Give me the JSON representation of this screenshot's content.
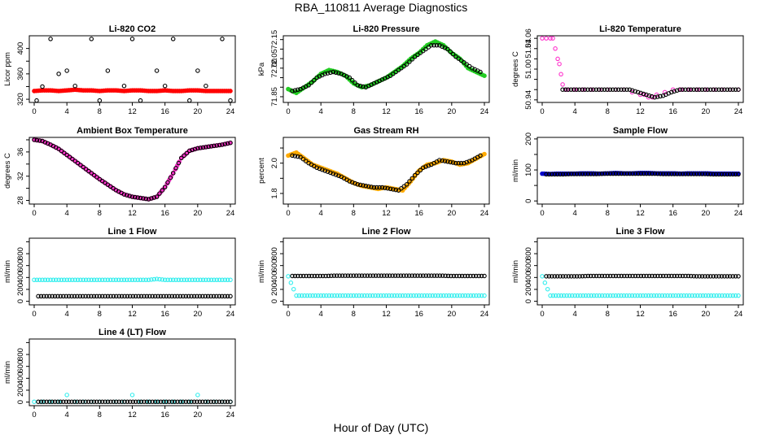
{
  "figure": {
    "title": "RBA_110811  Average Diagnostics",
    "xlabel": "Hour of Day (UTC)"
  },
  "chart_data": [
    {
      "type": "scatter",
      "title": "Li-820 CO2",
      "ylabel": "Licor ppm",
      "xlim": [
        0,
        24
      ],
      "xticks": [
        0,
        4,
        8,
        12,
        16,
        20,
        24
      ],
      "ylim": [
        315,
        420
      ],
      "yticks": [
        320,
        340,
        360,
        380,
        400
      ],
      "ytick_labels": [
        "320",
        "",
        "360",
        "",
        "400"
      ],
      "series": [
        {
          "color": "#ff0000",
          "marker": "dot",
          "x_range": [
            0,
            24
          ],
          "values": [
            333,
            334,
            334,
            333,
            334,
            335,
            334,
            334,
            333,
            334,
            334,
            333,
            334,
            334,
            333,
            333,
            334,
            333,
            333,
            334,
            334,
            333,
            333,
            333,
            333
          ]
        },
        {
          "color": "#000000",
          "marker": "circle",
          "x": [
            0.3,
            1,
            2,
            3,
            4,
            5,
            7,
            8,
            9,
            11,
            12,
            13,
            15,
            16,
            17,
            19,
            20,
            21,
            23,
            24
          ],
          "values": [
            318,
            340,
            415,
            360,
            365,
            341,
            415,
            318,
            365,
            341,
            415,
            318,
            365,
            341,
            415,
            318,
            365,
            341,
            415,
            318
          ]
        }
      ]
    },
    {
      "type": "scatter",
      "title": "Li-820 Pressure",
      "ylabel": "kPa",
      "xlim": [
        0,
        24
      ],
      "xticks": [
        0,
        4,
        8,
        12,
        16,
        20,
        24
      ],
      "ylim": [
        71.82,
        72.17
      ],
      "yticks": [
        71.85,
        71.9,
        71.95,
        72.0,
        72.05,
        72.1,
        72.15
      ],
      "ytick_labels": [
        "71.85",
        "",
        "",
        "72.00",
        "72.05",
        "",
        "72.15"
      ],
      "series": [
        {
          "color": "#22cc22",
          "marker": "dot",
          "x_range": [
            0,
            24
          ],
          "values": [
            71.89,
            71.87,
            71.9,
            71.93,
            71.97,
            71.99,
            71.98,
            71.96,
            71.92,
            71.9,
            71.91,
            71.93,
            71.95,
            71.98,
            72.01,
            72.05,
            72.08,
            72.12,
            72.14,
            72.12,
            72.08,
            72.05,
            72.0,
            71.98,
            71.96
          ]
        },
        {
          "color": "#000000",
          "marker": "circle",
          "x_range": [
            0.5,
            23.5
          ],
          "values": [
            71.88,
            71.89,
            71.91,
            71.95,
            71.97,
            71.98,
            71.97,
            71.95,
            71.91,
            71.9,
            71.92,
            71.94,
            71.96,
            71.99,
            72.02,
            72.06,
            72.09,
            72.12,
            72.12,
            72.1,
            72.06,
            72.03,
            72.0,
            71.98
          ]
        }
      ]
    },
    {
      "type": "scatter",
      "title": "Li-820 Temperature",
      "ylabel": "degrees C",
      "xlim": [
        0,
        24
      ],
      "xticks": [
        0,
        4,
        8,
        12,
        16,
        20,
        24
      ],
      "ylim": [
        50.935,
        51.065
      ],
      "yticks": [
        50.94,
        50.96,
        50.98,
        51.0,
        51.02,
        51.04,
        51.06
      ],
      "ytick_labels": [
        "50.94",
        "",
        "",
        "51.00",
        "",
        "51.04",
        "51.06"
      ],
      "series": [
        {
          "color": "#ff33cc",
          "marker": "circle",
          "x": [
            0,
            0.5,
            1,
            1.3,
            1.6,
            1.9,
            2.1,
            2.3,
            2.5,
            3,
            4,
            5,
            6,
            7,
            8,
            9,
            10,
            11,
            12,
            12.5,
            13,
            13.5,
            14,
            15,
            16,
            17,
            18,
            19,
            20,
            21,
            22,
            23,
            24
          ],
          "values": [
            51.06,
            51.06,
            51.06,
            51.06,
            51.04,
            51.02,
            51.01,
            50.99,
            50.97,
            50.96,
            50.96,
            50.96,
            50.96,
            50.96,
            50.96,
            50.96,
            50.96,
            50.955,
            50.95,
            50.95,
            50.945,
            50.945,
            50.95,
            50.955,
            50.96,
            50.96,
            50.96,
            50.96,
            50.96,
            50.96,
            50.96,
            50.96,
            50.96
          ]
        },
        {
          "color": "#000000",
          "marker": "circle",
          "x_range": [
            2.5,
            24
          ],
          "values": [
            50.96,
            50.96,
            50.96,
            50.96,
            50.96,
            50.96,
            50.96,
            50.96,
            50.96,
            50.955,
            50.95,
            50.945,
            50.948,
            50.955,
            50.96,
            50.96,
            50.96,
            50.96,
            50.96,
            50.96,
            50.96,
            50.96
          ]
        }
      ]
    },
    {
      "type": "scatter",
      "title": "Ambient Box Temperature",
      "ylabel": "degrees C",
      "xlim": [
        0,
        24
      ],
      "xticks": [
        0,
        4,
        8,
        12,
        16,
        20,
        24
      ],
      "ylim": [
        27.4,
        38.4
      ],
      "yticks": [
        28,
        30,
        32,
        34,
        36,
        38
      ],
      "ytick_labels": [
        "28",
        "",
        "32",
        "",
        "36",
        ""
      ],
      "series": [
        {
          "color": "#ff33cc",
          "marker": "dot",
          "x_range": [
            0,
            24
          ],
          "values": [
            38,
            37.8,
            37.2,
            36.5,
            35.5,
            34.5,
            33.5,
            32.5,
            31.5,
            30.6,
            29.7,
            29,
            28.6,
            28.4,
            28.2,
            28.6,
            30.2,
            32.5,
            35,
            36.2,
            36.6,
            36.8,
            37,
            37.2,
            37.5
          ]
        },
        {
          "color": "#000000",
          "marker": "circle",
          "x_range": [
            0,
            24
          ],
          "values": [
            38,
            37.8,
            37.2,
            36.5,
            35.5,
            34.5,
            33.5,
            32.5,
            31.5,
            30.6,
            29.7,
            29,
            28.6,
            28.4,
            28.2,
            28.6,
            30.2,
            32.5,
            35,
            36.2,
            36.6,
            36.8,
            37,
            37.2,
            37.5
          ]
        }
      ]
    },
    {
      "type": "scatter",
      "title": "Gas Stream RH",
      "ylabel": "percent",
      "xlim": [
        0,
        24
      ],
      "xticks": [
        0,
        4,
        8,
        12,
        16,
        20,
        24
      ],
      "ylim": [
        1.73,
        2.17
      ],
      "yticks": [
        1.8,
        1.9,
        2.0,
        2.1
      ],
      "ytick_labels": [
        "1.8",
        "",
        "2.0",
        ""
      ],
      "series": [
        {
          "color": "#ffaa00",
          "marker": "dot",
          "x_range": [
            0,
            24
          ],
          "values": [
            2.05,
            2.07,
            2.03,
            1.99,
            1.97,
            1.95,
            1.93,
            1.9,
            1.87,
            1.85,
            1.84,
            1.83,
            1.84,
            1.83,
            1.82,
            1.88,
            1.95,
            1.99,
            2.0,
            2.02,
            2.01,
            1.99,
            2.0,
            2.03,
            2.06
          ]
        },
        {
          "color": "#000000",
          "marker": "circle",
          "x_range": [
            0.5,
            23.5
          ],
          "values": [
            2.05,
            2.04,
            2.0,
            1.97,
            1.95,
            1.93,
            1.91,
            1.88,
            1.86,
            1.85,
            1.84,
            1.84,
            1.83,
            1.82,
            1.86,
            1.92,
            1.97,
            1.99,
            2.02,
            2.01,
            2.0,
            2.0,
            2.02,
            2.05
          ]
        }
      ]
    },
    {
      "type": "scatter",
      "title": "Sample Flow",
      "ylabel": "ml/min",
      "xlim": [
        0,
        24
      ],
      "xticks": [
        0,
        4,
        8,
        12,
        16,
        20,
        24
      ],
      "ylim": [
        -10,
        205
      ],
      "yticks": [
        0,
        50,
        100,
        150,
        200
      ],
      "ytick_labels": [
        "0",
        "",
        "100",
        "",
        "200"
      ],
      "series": [
        {
          "color": "#0000cc",
          "marker": "dot",
          "x_range": [
            0,
            24
          ],
          "values": [
            88,
            87,
            88,
            88,
            88,
            89,
            89,
            88,
            89,
            90,
            89,
            89,
            90,
            90,
            89,
            89,
            89,
            88,
            89,
            89,
            89,
            88,
            88,
            88,
            88
          ]
        },
        {
          "color": "#000000",
          "marker": "circle",
          "x_range": [
            0.5,
            24
          ],
          "values": [
            86,
            86,
            86,
            87,
            87,
            87,
            87,
            88,
            88,
            88,
            88,
            88,
            88,
            88,
            87,
            87,
            87,
            87,
            87,
            87,
            86,
            86,
            86,
            86
          ]
        }
      ]
    },
    {
      "type": "scatter",
      "title": "Line 1 Flow",
      "ylabel": "ml/min",
      "xlim": [
        0,
        24
      ],
      "xticks": [
        0,
        4,
        8,
        12,
        16,
        20,
        24
      ],
      "ylim": [
        -60,
        1060
      ],
      "yticks": [
        0,
        200,
        400,
        600,
        800,
        1000
      ],
      "ytick_labels": [
        "0",
        "200",
        "400",
        "600",
        "800",
        ""
      ],
      "series": [
        {
          "color": "#33eeee",
          "marker": "circle",
          "x_range": [
            0,
            24
          ],
          "values": [
            360,
            360,
            360,
            360,
            360,
            360,
            360,
            360,
            360,
            360,
            360,
            360,
            360,
            360,
            360,
            375,
            360,
            360,
            360,
            360,
            360,
            360,
            360,
            360,
            360
          ]
        },
        {
          "color": "#000000",
          "marker": "circle",
          "x_range": [
            0.5,
            24
          ],
          "values": [
            85,
            85,
            85,
            85,
            85,
            85,
            85,
            85,
            85,
            85,
            85,
            85,
            85,
            85,
            85,
            85,
            85,
            85,
            85,
            85,
            85,
            85,
            85,
            85
          ]
        }
      ]
    },
    {
      "type": "scatter",
      "title": "Line 2 Flow",
      "ylabel": "ml/min",
      "xlim": [
        0,
        24
      ],
      "xticks": [
        0,
        4,
        8,
        12,
        16,
        20,
        24
      ],
      "ylim": [
        -60,
        1060
      ],
      "yticks": [
        0,
        200,
        400,
        600,
        800,
        1000
      ],
      "ytick_labels": [
        "0",
        "200",
        "400",
        "600",
        "800",
        ""
      ],
      "series": [
        {
          "color": "#33eeee",
          "marker": "circle",
          "x_range": [
            0,
            24
          ],
          "values": [
            420,
            95,
            95,
            95,
            95,
            95,
            95,
            95,
            95,
            95,
            95,
            95,
            95,
            95,
            95,
            95,
            95,
            95,
            95,
            95,
            95,
            95,
            95,
            95,
            95
          ]
        },
        {
          "color": "#000000",
          "marker": "circle",
          "x_range": [
            0.5,
            24
          ],
          "values": [
            425,
            425,
            425,
            425,
            425,
            430,
            430,
            430,
            430,
            430,
            430,
            430,
            430,
            430,
            430,
            430,
            430,
            430,
            430,
            425,
            425,
            425,
            425,
            425
          ]
        }
      ]
    },
    {
      "type": "scatter",
      "title": "Line 3 Flow",
      "ylabel": "ml/min",
      "xlim": [
        0,
        24
      ],
      "xticks": [
        0,
        4,
        8,
        12,
        16,
        20,
        24
      ],
      "ylim": [
        -60,
        1060
      ],
      "yticks": [
        0,
        200,
        400,
        600,
        800,
        1000
      ],
      "ytick_labels": [
        "0",
        "200",
        "400",
        "600",
        "800",
        ""
      ],
      "series": [
        {
          "color": "#33eeee",
          "marker": "circle",
          "x_range": [
            0,
            24
          ],
          "values": [
            420,
            95,
            95,
            95,
            95,
            95,
            95,
            95,
            95,
            95,
            95,
            95,
            95,
            95,
            95,
            95,
            95,
            95,
            95,
            95,
            95,
            95,
            95,
            95,
            95
          ]
        },
        {
          "color": "#000000",
          "marker": "circle",
          "x_range": [
            0.5,
            24
          ],
          "values": [
            420,
            420,
            420,
            420,
            420,
            425,
            425,
            425,
            425,
            425,
            425,
            425,
            425,
            425,
            425,
            425,
            425,
            425,
            420,
            420,
            420,
            420,
            420,
            420
          ]
        }
      ]
    },
    {
      "type": "scatter",
      "title": "Line 4 (LT) Flow",
      "ylabel": "ml/min",
      "xlim": [
        0,
        24
      ],
      "xticks": [
        0,
        4,
        8,
        12,
        16,
        20,
        24
      ],
      "ylim": [
        -60,
        1060
      ],
      "yticks": [
        0,
        200,
        400,
        600,
        800,
        1000
      ],
      "ytick_labels": [
        "0",
        "200",
        "400",
        "600",
        "800",
        ""
      ],
      "series": [
        {
          "color": "#33eeee",
          "marker": "circle",
          "x": [
            0,
            1,
            2,
            3,
            4,
            5,
            6,
            7,
            8,
            9,
            10,
            11,
            12,
            13,
            14,
            15,
            16,
            17,
            18,
            19,
            20,
            21,
            22,
            23,
            24
          ],
          "values": [
            5,
            5,
            5,
            5,
            120,
            5,
            5,
            5,
            5,
            5,
            5,
            5,
            120,
            5,
            5,
            5,
            5,
            5,
            5,
            5,
            120,
            5,
            5,
            5,
            5
          ]
        },
        {
          "color": "#000000",
          "marker": "circle",
          "x_range": [
            0.5,
            24
          ],
          "values": [
            5,
            5,
            5,
            5,
            5,
            5,
            5,
            5,
            5,
            5,
            5,
            5,
            5,
            5,
            5,
            5,
            5,
            5,
            5,
            5,
            5,
            5,
            5,
            5
          ]
        }
      ]
    }
  ]
}
